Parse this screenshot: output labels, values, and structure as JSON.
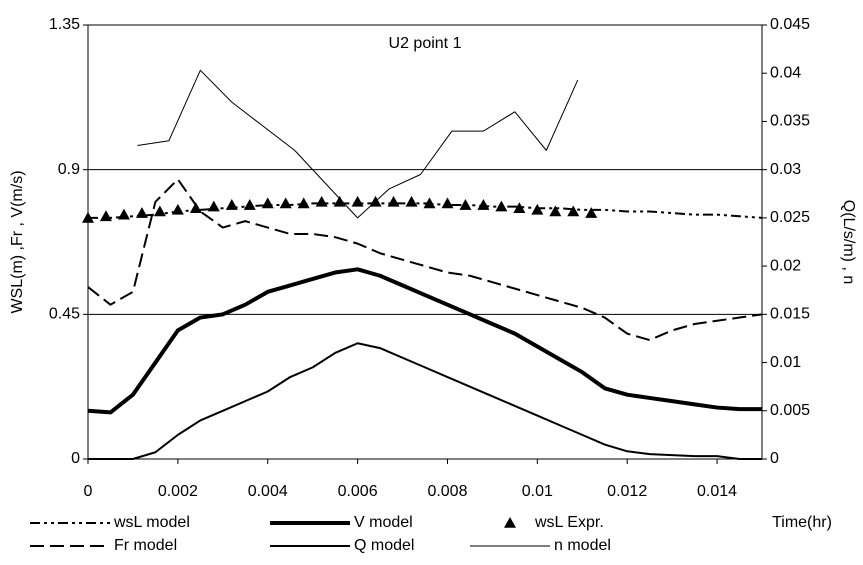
{
  "chart_data": {
    "type": "line",
    "title": "U2   point 1",
    "ylabel": "WSL(m) ,Fr , V(m/s)",
    "y2label": "Q(L/s/m) , n",
    "xlabel": "Time(hr)",
    "xlim": [
      0,
      0.015
    ],
    "xticks": [
      0,
      0.002,
      0.004,
      0.006,
      0.008,
      0.01,
      0.012,
      0.014
    ],
    "ylim": [
      0,
      1.35
    ],
    "yticks": [
      0,
      0.45,
      0.9,
      1.35
    ],
    "y2lim": [
      0,
      0.045
    ],
    "y2ticks": [
      0,
      0.005,
      0.01,
      0.015,
      0.02,
      0.025,
      0.03,
      0.035,
      0.04,
      0.045
    ],
    "grid": true,
    "legend": "bottom",
    "x": [
      0,
      0.0005,
      0.001,
      0.0015,
      0.002,
      0.0025,
      0.003,
      0.0035,
      0.004,
      0.0045,
      0.005,
      0.0055,
      0.006,
      0.0065,
      0.007,
      0.0075,
      0.008,
      0.0085,
      0.009,
      0.0095,
      0.01,
      0.0105,
      0.011,
      0.0115,
      0.012,
      0.0125,
      0.013,
      0.0135,
      0.014,
      0.0145,
      0.015
    ],
    "series": [
      {
        "name": "wsL model",
        "color": "#000000",
        "width": 2,
        "dash": "10,4,3,4,3,4",
        "values": [
          0.75,
          0.75,
          0.755,
          0.76,
          0.77,
          0.775,
          0.78,
          0.785,
          0.79,
          0.79,
          0.795,
          0.795,
          0.795,
          0.795,
          0.795,
          0.795,
          0.79,
          0.79,
          0.785,
          0.785,
          0.78,
          0.78,
          0.775,
          0.775,
          0.77,
          0.77,
          0.765,
          0.76,
          0.76,
          0.755,
          0.75
        ]
      },
      {
        "name": "V model",
        "color": "#000000",
        "width": 4,
        "values": [
          0.15,
          0.145,
          0.2,
          0.3,
          0.4,
          0.44,
          0.45,
          0.48,
          0.52,
          0.54,
          0.56,
          0.58,
          0.59,
          0.57,
          0.54,
          0.51,
          0.48,
          0.45,
          0.42,
          0.39,
          0.35,
          0.31,
          0.27,
          0.22,
          0.2,
          0.19,
          0.18,
          0.17,
          0.16,
          0.155,
          0.155
        ]
      },
      {
        "name": "wsL Expr.",
        "color": "#000000",
        "marker": "triangle",
        "x": [
          0,
          0.0004,
          0.0008,
          0.0012,
          0.0016,
          0.002,
          0.0024,
          0.0028,
          0.0032,
          0.0036,
          0.004,
          0.0044,
          0.0048,
          0.0052,
          0.0056,
          0.006,
          0.0064,
          0.0068,
          0.0072,
          0.0076,
          0.008,
          0.0084,
          0.0088,
          0.0092,
          0.0096,
          0.01,
          0.0104,
          0.0108,
          0.0112
        ],
        "values": [
          0.75,
          0.755,
          0.76,
          0.765,
          0.77,
          0.775,
          0.78,
          0.785,
          0.79,
          0.79,
          0.795,
          0.795,
          0.795,
          0.8,
          0.8,
          0.8,
          0.8,
          0.8,
          0.8,
          0.795,
          0.795,
          0.79,
          0.79,
          0.785,
          0.78,
          0.775,
          0.77,
          0.77,
          0.765
        ]
      },
      {
        "name": "Fr model",
        "color": "#000000",
        "width": 2,
        "dash": "14,6",
        "values": [
          0.535,
          0.48,
          0.52,
          0.8,
          0.87,
          0.77,
          0.72,
          0.74,
          0.72,
          0.7,
          0.7,
          0.69,
          0.67,
          0.64,
          0.62,
          0.6,
          0.58,
          0.57,
          0.55,
          0.53,
          0.51,
          0.49,
          0.47,
          0.44,
          0.39,
          0.37,
          0.4,
          0.42,
          0.43,
          0.44,
          0.45
        ]
      },
      {
        "name": "Q model",
        "color": "#000000",
        "width": 2,
        "axis": "y2",
        "values": [
          0,
          0,
          0,
          0.0007,
          0.0025,
          0.004,
          0.005,
          0.006,
          0.007,
          0.0085,
          0.0095,
          0.011,
          0.012,
          0.0115,
          0.0105,
          0.0095,
          0.0085,
          0.0075,
          0.0065,
          0.0055,
          0.0045,
          0.0035,
          0.0025,
          0.0015,
          0.0008,
          0.0005,
          0.0004,
          0.0003,
          0.0003,
          0,
          0
        ]
      },
      {
        "name": "n model",
        "color": "#000000",
        "width": 1,
        "axis": "y2",
        "x": [
          0.0011,
          0.0018,
          0.0025,
          0.0032,
          0.0039,
          0.0046,
          0.0053,
          0.006,
          0.0067,
          0.0074,
          0.0081,
          0.0088,
          0.0095,
          0.0102,
          0.0109
        ],
        "values": [
          0.0325,
          0.033,
          0.0403,
          0.037,
          0.0345,
          0.032,
          0.0285,
          0.025,
          0.028,
          0.0295,
          0.034,
          0.034,
          0.036,
          0.032,
          0.0393
        ]
      }
    ]
  }
}
